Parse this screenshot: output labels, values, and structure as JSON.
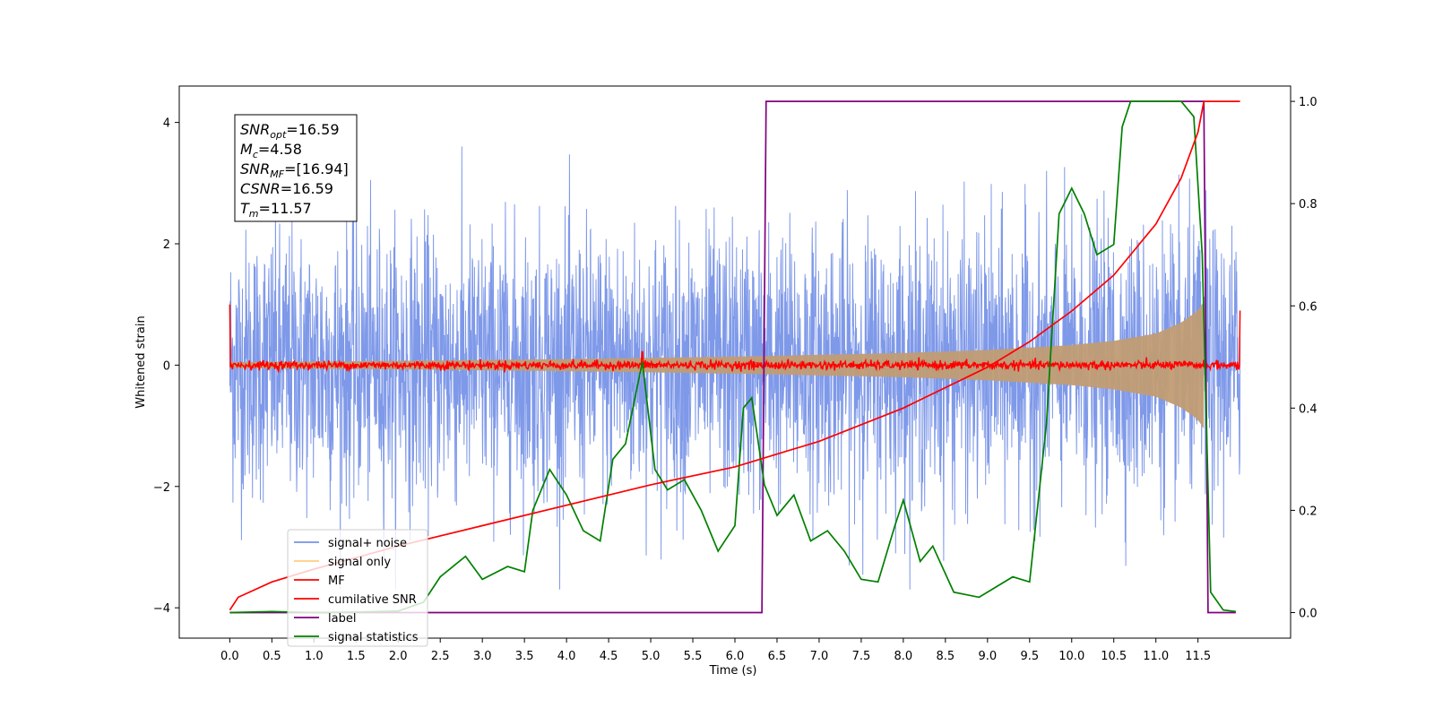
{
  "chart_data": {
    "type": "line",
    "xlabel": "Time (s)",
    "ylabel": "Whitened strain",
    "xlim": [
      -0.6,
      12.6
    ],
    "ylim": [
      -4.5,
      4.6
    ],
    "y2lim": [
      -0.05,
      1.03
    ],
    "xticks": [
      0.0,
      0.5,
      1.0,
      1.5,
      2.0,
      2.5,
      3.0,
      3.5,
      4.0,
      4.5,
      5.0,
      5.5,
      6.0,
      6.5,
      7.0,
      7.5,
      8.0,
      8.5,
      9.0,
      9.5,
      10.0,
      10.5,
      11.0,
      11.5
    ],
    "xtick_labels": [
      "0.0",
      "0.5",
      "1.0",
      "1.5",
      "2.0",
      "2.5",
      "3.0",
      "3.5",
      "4.0",
      "4.5",
      "5.0",
      "5.5",
      "6.0",
      "6.5",
      "7.0",
      "7.5",
      "8.0",
      "8.5",
      "9.0",
      "9.5",
      "10.0",
      "10.5",
      "11.0",
      "11.5"
    ],
    "yticks": [
      -4,
      -2,
      0,
      2,
      4
    ],
    "ytick_labels": [
      "−4",
      "−2",
      "0",
      "2",
      "4"
    ],
    "y2ticks": [
      0.0,
      0.2,
      0.4,
      0.6,
      0.8,
      1.0
    ],
    "y2tick_labels": [
      "0.0",
      "0.2",
      "0.4",
      "0.6",
      "0.8",
      "1.0"
    ],
    "annotation": {
      "lines": [
        {
          "main": "SNR",
          "sub": "opt",
          "rest": "=16.59"
        },
        {
          "main": "M",
          "sub": "c",
          "rest": "=4.58"
        },
        {
          "main": "SNR",
          "sub": "MF",
          "rest": "=[16.94]"
        },
        {
          "main": "CSNR",
          "sub": "",
          "rest": "=16.59"
        },
        {
          "main": "T",
          "sub": "m",
          "rest": "=11.57"
        }
      ]
    },
    "legend": {
      "placement": "lower-left",
      "entries": [
        "signal+ noise",
        "signal only",
        "MF",
        "cumilative SNR",
        "label",
        "signal statistics"
      ]
    },
    "series": [
      {
        "name": "signal+ noise",
        "axis": "left",
        "color": "#7893e8",
        "kind": "noise band",
        "t_start": 0.0,
        "t_end": 12.0,
        "typical_amplitude": 1.1,
        "peak_amplitude": 3.7
      },
      {
        "name": "signal only",
        "axis": "left",
        "color": "#c19c74",
        "kind": "chirp envelope",
        "t_start": 0.0,
        "t_end": 11.57,
        "envelope_points": [
          [
            0.0,
            0.05
          ],
          [
            2.0,
            0.07
          ],
          [
            4.0,
            0.1
          ],
          [
            6.0,
            0.14
          ],
          [
            8.0,
            0.2
          ],
          [
            9.0,
            0.25
          ],
          [
            10.0,
            0.33
          ],
          [
            10.5,
            0.4
          ],
          [
            11.0,
            0.52
          ],
          [
            11.3,
            0.7
          ],
          [
            11.5,
            0.9
          ],
          [
            11.57,
            1.05
          ]
        ]
      },
      {
        "name": "MF",
        "axis": "left",
        "color": "#ff0000",
        "kind": "noisy baseline",
        "t_start": 0.0,
        "t_end": 12.0,
        "baseline": 0.0,
        "jitter": 0.06,
        "start_value": 1.0,
        "end_value": 0.9
      },
      {
        "name": "cumilative SNR",
        "axis": "right",
        "color": "#ff0000",
        "points": [
          [
            0.0,
            0.005
          ],
          [
            0.1,
            0.03
          ],
          [
            0.5,
            0.06
          ],
          [
            1.0,
            0.085
          ],
          [
            2.0,
            0.13
          ],
          [
            3.0,
            0.17
          ],
          [
            4.0,
            0.21
          ],
          [
            5.0,
            0.25
          ],
          [
            6.0,
            0.285
          ],
          [
            7.0,
            0.335
          ],
          [
            8.0,
            0.4
          ],
          [
            8.5,
            0.44
          ],
          [
            9.0,
            0.48
          ],
          [
            9.5,
            0.53
          ],
          [
            10.0,
            0.59
          ],
          [
            10.5,
            0.66
          ],
          [
            11.0,
            0.76
          ],
          [
            11.3,
            0.85
          ],
          [
            11.5,
            0.94
          ],
          [
            11.57,
            1.0
          ],
          [
            12.0,
            1.0
          ]
        ]
      },
      {
        "name": "label",
        "axis": "right",
        "color": "#800080",
        "points": [
          [
            0.0,
            0.0
          ],
          [
            6.32,
            0.0
          ],
          [
            6.37,
            1.0
          ],
          [
            11.57,
            1.0
          ],
          [
            11.62,
            0.0
          ],
          [
            11.95,
            0.0
          ]
        ]
      },
      {
        "name": "signal statistics",
        "axis": "right",
        "color": "#008000",
        "points": [
          [
            0.0,
            0.0
          ],
          [
            0.5,
            0.002
          ],
          [
            1.0,
            0.0
          ],
          [
            1.5,
            0.001
          ],
          [
            2.0,
            0.003
          ],
          [
            2.3,
            0.02
          ],
          [
            2.5,
            0.07
          ],
          [
            2.8,
            0.11
          ],
          [
            3.0,
            0.065
          ],
          [
            3.3,
            0.09
          ],
          [
            3.5,
            0.08
          ],
          [
            3.6,
            0.2
          ],
          [
            3.8,
            0.28
          ],
          [
            4.0,
            0.23
          ],
          [
            4.2,
            0.16
          ],
          [
            4.4,
            0.14
          ],
          [
            4.55,
            0.3
          ],
          [
            4.7,
            0.33
          ],
          [
            4.9,
            0.49
          ],
          [
            5.05,
            0.28
          ],
          [
            5.2,
            0.24
          ],
          [
            5.4,
            0.26
          ],
          [
            5.6,
            0.2
          ],
          [
            5.8,
            0.12
          ],
          [
            6.0,
            0.17
          ],
          [
            6.1,
            0.4
          ],
          [
            6.2,
            0.42
          ],
          [
            6.35,
            0.25
          ],
          [
            6.5,
            0.19
          ],
          [
            6.7,
            0.23
          ],
          [
            6.9,
            0.14
          ],
          [
            7.1,
            0.16
          ],
          [
            7.3,
            0.12
          ],
          [
            7.5,
            0.065
          ],
          [
            7.7,
            0.06
          ],
          [
            7.9,
            0.17
          ],
          [
            8.0,
            0.22
          ],
          [
            8.2,
            0.1
          ],
          [
            8.35,
            0.13
          ],
          [
            8.6,
            0.04
          ],
          [
            8.9,
            0.03
          ],
          [
            9.1,
            0.05
          ],
          [
            9.3,
            0.07
          ],
          [
            9.5,
            0.06
          ],
          [
            9.7,
            0.37
          ],
          [
            9.85,
            0.78
          ],
          [
            10.0,
            0.83
          ],
          [
            10.15,
            0.78
          ],
          [
            10.3,
            0.7
          ],
          [
            10.5,
            0.72
          ],
          [
            10.6,
            0.95
          ],
          [
            10.7,
            1.0
          ],
          [
            11.0,
            1.0
          ],
          [
            11.3,
            1.0
          ],
          [
            11.45,
            0.97
          ],
          [
            11.55,
            0.7
          ],
          [
            11.65,
            0.04
          ],
          [
            11.8,
            0.005
          ],
          [
            11.95,
            0.002
          ]
        ]
      }
    ]
  }
}
